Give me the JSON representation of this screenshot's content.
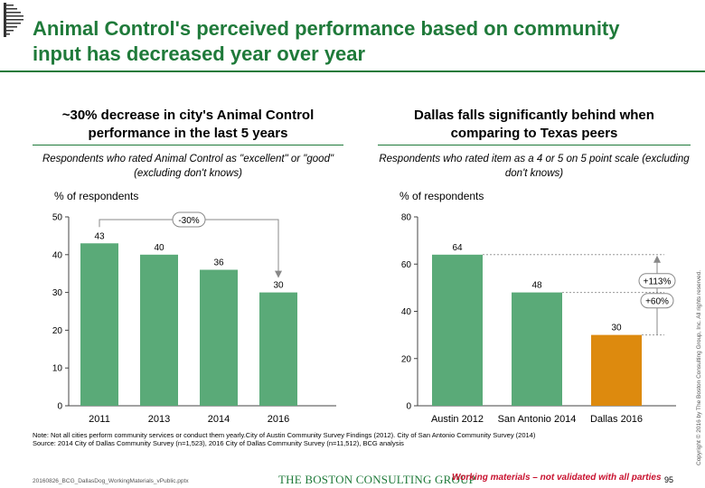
{
  "title": "Animal Control's perceived performance based on community input has decreased year over year",
  "left_panel": {
    "heading": "~30% decrease in city's Animal Control performance in the last 5 years",
    "subtitle": "Respondents who rated Animal Control as \"excellent\" or \"good\" (excluding don't knows)",
    "unit_label": "% of respondents"
  },
  "right_panel": {
    "heading": "Dallas falls significantly behind when comparing to Texas peers",
    "subtitle": "Respondents who rated item as a 4 or 5 on 5 point scale (excluding don't knows)",
    "unit_label": "% of respondents"
  },
  "chart_data": [
    {
      "type": "bar",
      "categories": [
        "2011",
        "2013",
        "2014",
        "2016"
      ],
      "values": [
        43,
        40,
        36,
        30
      ],
      "ylim": [
        0,
        50
      ],
      "yticks": [
        0,
        10,
        20,
        30,
        40,
        50
      ],
      "ylabel": "% of respondents",
      "bar_colors": [
        "#5aaa78",
        "#5aaa78",
        "#5aaa78",
        "#5aaa78"
      ],
      "annotations": [
        {
          "text": "-30%",
          "from": "2011",
          "to": "2016"
        }
      ]
    },
    {
      "type": "bar",
      "categories": [
        "Austin 2012",
        "San Antonio 2014",
        "Dallas 2016"
      ],
      "values": [
        64,
        48,
        30
      ],
      "ylim": [
        0,
        80
      ],
      "yticks": [
        0,
        20,
        40,
        60,
        80
      ],
      "ylabel": "% of respondents",
      "bar_colors": [
        "#5aaa78",
        "#5aaa78",
        "#dd8a0e"
      ],
      "annotations": [
        {
          "text": "+113%",
          "from": "Dallas 2016",
          "to": "Austin 2012"
        },
        {
          "text": "+60%",
          "from": "Dallas 2016",
          "to": "San Antonio 2014"
        }
      ]
    }
  ],
  "footnote": {
    "note": "Note: Not all cities perform community services or conduct them yearly.City of Austin Community Survey Findings (2012). City of San Antonio Community Survey (2014)",
    "source": "Source: 2014 City of Dallas Community Survey (n=1,523), 2016 City of Dallas Community Survey (n=11,512), BCG analysis"
  },
  "footer": {
    "filename": "20160826_BCG_DallasDog_WorkingMaterials_vPublic.pptx",
    "brand": "THE BOSTON CONSULTING GROUP",
    "working": "Working materials – not validated with all parties",
    "page_number": "95",
    "copyright": "Copyright © 2016 by The Boston Consulting Group, Inc. All rights reserved."
  }
}
